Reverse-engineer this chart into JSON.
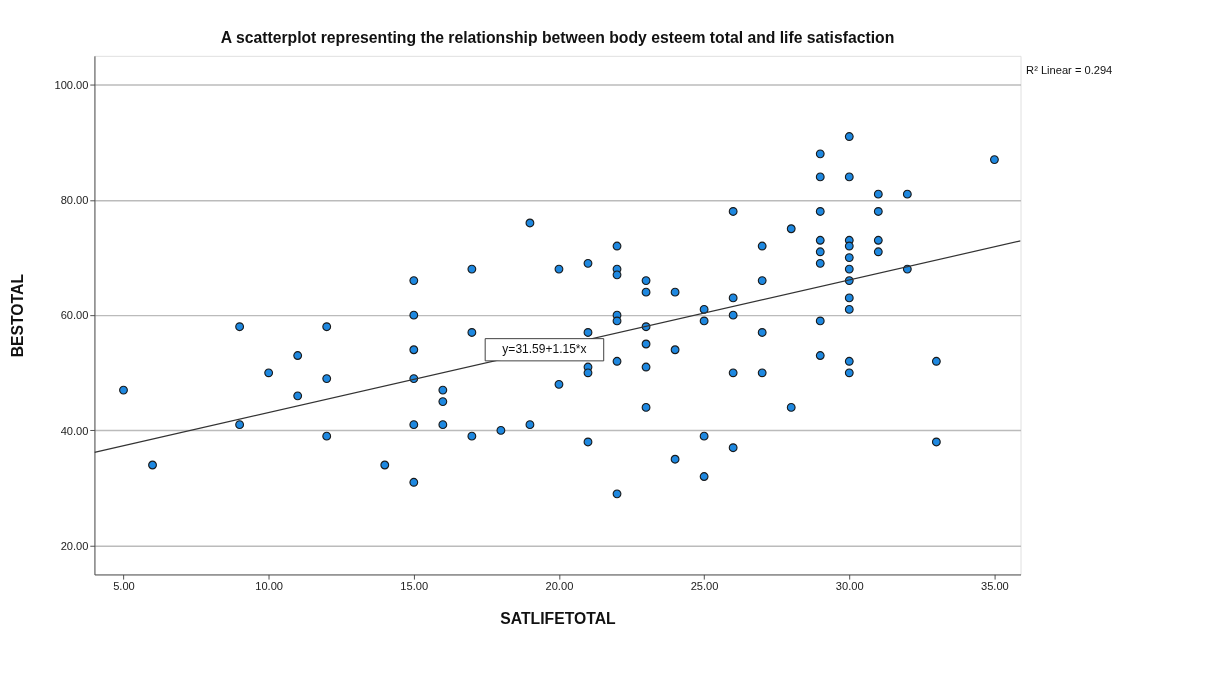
{
  "chart_data": {
    "type": "scatter",
    "title": "A scatterplot representing the relationship between body esteem total and life satisfaction",
    "xlabel": "SATLIFETOTAL",
    "ylabel": "BESTOTAL",
    "xlim": [
      4,
      35.9
    ],
    "ylim": [
      15,
      105
    ],
    "xticks": [
      {
        "value": 5,
        "label": "5.00"
      },
      {
        "value": 10,
        "label": "10.00"
      },
      {
        "value": 15,
        "label": "15.00"
      },
      {
        "value": 20,
        "label": "20.00"
      },
      {
        "value": 25,
        "label": "25.00"
      },
      {
        "value": 30,
        "label": "30.00"
      },
      {
        "value": 35,
        "label": "35.00"
      }
    ],
    "yticks": [
      {
        "value": 20,
        "label": "20.00"
      },
      {
        "value": 40,
        "label": "40.00"
      },
      {
        "value": 60,
        "label": "60.00"
      },
      {
        "value": 80,
        "label": "80.00"
      },
      {
        "value": 100,
        "label": "100.00"
      }
    ],
    "grid": "y",
    "series": [
      {
        "type": "scatter",
        "marker": "circle",
        "color": "#1e88e0",
        "x": [
          5,
          6,
          9,
          9,
          10,
          11,
          11,
          12,
          12,
          12,
          14,
          15,
          15,
          15,
          15,
          15,
          15,
          16,
          16,
          16,
          17,
          17,
          17,
          18,
          19,
          19,
          20,
          20,
          21,
          21,
          21,
          21,
          21,
          22,
          22,
          22,
          22,
          22,
          22,
          22,
          23,
          23,
          23,
          23,
          23,
          23,
          24,
          24,
          24,
          25,
          25,
          25,
          25,
          26,
          26,
          26,
          26,
          26,
          27,
          27,
          27,
          27,
          28,
          28,
          29,
          29,
          29,
          29,
          29,
          29,
          29,
          29,
          30,
          30,
          30,
          30,
          30,
          30,
          30,
          30,
          30,
          30,
          30,
          31,
          31,
          31,
          31,
          32,
          32,
          33,
          33,
          35
        ],
        "values": [
          47,
          34,
          58,
          41,
          50,
          53,
          46,
          58,
          49,
          39,
          34,
          66,
          60,
          54,
          49,
          41,
          31,
          47,
          45,
          41,
          68,
          57,
          39,
          40,
          76,
          41,
          68,
          48,
          69,
          57,
          51,
          50,
          38,
          72,
          68,
          67,
          60,
          59,
          52,
          29,
          66,
          64,
          58,
          55,
          51,
          44,
          64,
          54,
          35,
          61,
          59,
          39,
          32,
          78,
          63,
          60,
          50,
          37,
          72,
          66,
          57,
          50,
          75,
          44,
          88,
          84,
          78,
          73,
          71,
          69,
          59,
          53,
          91,
          84,
          73,
          72,
          70,
          68,
          66,
          63,
          61,
          52,
          50,
          81,
          78,
          73,
          71,
          81,
          68,
          52,
          38,
          87
        ]
      },
      {
        "type": "line",
        "marker": "none",
        "color": "#333333",
        "x": [
          4,
          35.9
        ],
        "values": [
          36.2,
          72.9
        ]
      }
    ],
    "annotations": [
      {
        "text": "y=31.59+1.15*x",
        "x": 19.5,
        "y": 54.0
      },
      "R² Linear = 0.294"
    ]
  }
}
